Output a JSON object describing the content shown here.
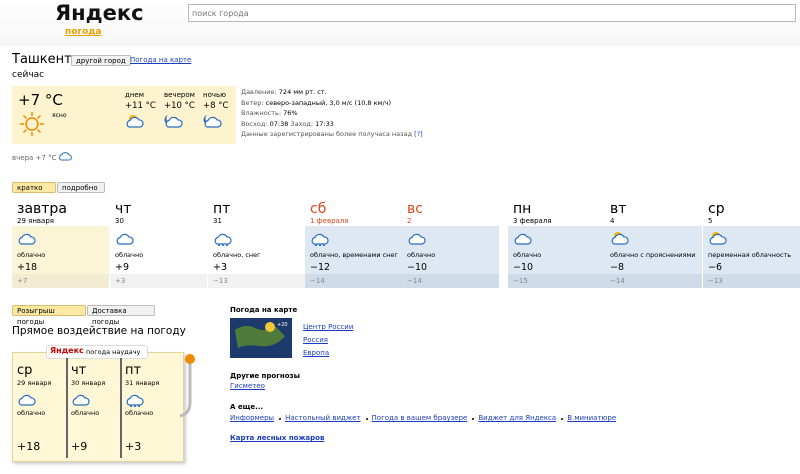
{
  "header": {
    "logo": "Яндекс",
    "service": "погода",
    "search_placeholder": "поиск города"
  },
  "city": {
    "name": "Ташкент",
    "other_city": "другой город",
    "map_link": "Погода на карте",
    "now_label": "сейчас"
  },
  "current": {
    "temp": "+7 °C",
    "condition": "ясно",
    "parts": [
      {
        "name": "днем",
        "temp": "+11 °C"
      },
      {
        "name": "вечером",
        "temp": "+10 °C"
      },
      {
        "name": "ночью",
        "temp": "+8 °C"
      }
    ],
    "details": [
      {
        "label": "Давление:",
        "value": "724 мм рт. ст."
      },
      {
        "label": "Ветер:",
        "value": "северо-западный, 3,0 м/с (10,8 км/ч)"
      },
      {
        "label": "Влажность:",
        "value": "76%"
      }
    ],
    "sunrise_label": "Восход:",
    "sunrise": "07:38",
    "sunset_label": "Заход:",
    "sunset": "17:33",
    "note": "Данные зарегистрированы более получаса назад",
    "note_help": "[?]",
    "yesterday": "вчера +7 °C"
  },
  "tabs": [
    "кратко",
    "подробно"
  ],
  "forecast": [
    {
      "day": "завтра",
      "date": "29 января",
      "condition": "облачно",
      "temp": "+18",
      "night": "+7"
    },
    {
      "day": "чт",
      "date": "30",
      "condition": "облачно",
      "temp": "+9",
      "night": "+3"
    },
    {
      "day": "пт",
      "date": "31",
      "condition": "облачно, снег",
      "temp": "+3",
      "night": "−13"
    },
    {
      "day": "сб",
      "date": "1 февраля",
      "condition": "облачно, временами снег",
      "temp": "−12",
      "night": "−14"
    },
    {
      "day": "вс",
      "date": "2",
      "condition": "облачно",
      "temp": "−10",
      "night": "−14"
    },
    {
      "day": "пн",
      "date": "3 февраля",
      "condition": "облачно",
      "temp": "−10",
      "night": "−15"
    },
    {
      "day": "вт",
      "date": "4",
      "condition": "облачно с прояснениями",
      "temp": "−8",
      "night": "−14"
    },
    {
      "day": "ср",
      "date": "5",
      "condition": "переменная облачность",
      "temp": "−6",
      "night": "−13"
    }
  ],
  "bottom_tabs": [
    "Розыгрыш погоды",
    "Доставка погоды"
  ],
  "game": {
    "heading": "Прямое воздействие на погоду",
    "logo": "Яндекс",
    "subtitle": "погода наудачу",
    "days": [
      {
        "day": "ср",
        "date": "29 января",
        "condition": "облачно",
        "temp": "+18"
      },
      {
        "day": "чт",
        "date": "30 января",
        "condition": "облачно",
        "temp": "+9"
      },
      {
        "day": "пт",
        "date": "31 января",
        "condition": "облачно",
        "temp": "+3"
      }
    ]
  },
  "sidebar": {
    "map_title": "Погода на карте",
    "map_links": [
      "Центр России",
      "Россия",
      "Европа"
    ],
    "map_badge": "+20",
    "other_title": "Другие прогнозы",
    "other_links": [
      "Гисметео"
    ],
    "more_title": "А еще...",
    "more_links": [
      "Информеры",
      "Настольный виджет",
      "Погода в вашем браузере",
      "Виджет для Яндекса",
      "В миниатюре"
    ],
    "fires": "Карта лесных пожаров"
  }
}
